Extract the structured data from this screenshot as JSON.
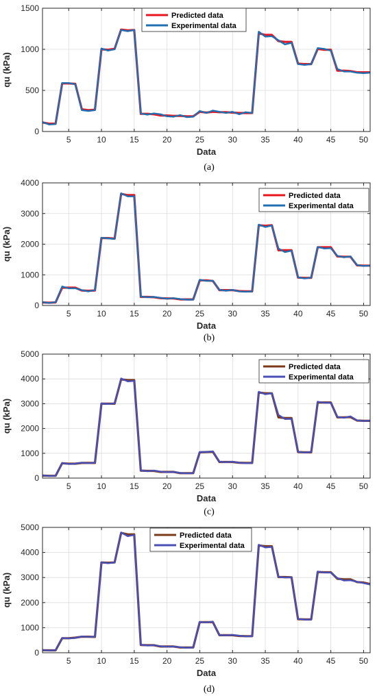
{
  "chart_data": [
    {
      "type": "line",
      "panel_label": "(a)",
      "xlabel": "Data",
      "ylabel": "qu (kPa)",
      "xlim": [
        1,
        51
      ],
      "ylim": [
        0,
        1500
      ],
      "xticks": [
        5,
        10,
        15,
        20,
        25,
        30,
        35,
        40,
        45,
        50
      ],
      "yticks": [
        0,
        500,
        1000,
        1500
      ],
      "grid": true,
      "legend_position": "top-center",
      "x": [
        1,
        2,
        3,
        4,
        5,
        6,
        7,
        8,
        9,
        10,
        11,
        12,
        13,
        14,
        15,
        16,
        17,
        18,
        19,
        20,
        21,
        22,
        23,
        24,
        25,
        26,
        27,
        28,
        29,
        30,
        31,
        32,
        33,
        34,
        35,
        36,
        37,
        38,
        39,
        40,
        41,
        42,
        43,
        44,
        45,
        46,
        47,
        48,
        49,
        50,
        51
      ],
      "series": [
        {
          "name": "Predicted data",
          "color": "#e8141e",
          "values": [
            110,
            95,
            95,
            585,
            585,
            580,
            270,
            260,
            265,
            1000,
            995,
            1005,
            1240,
            1230,
            1235,
            215,
            215,
            210,
            195,
            195,
            190,
            190,
            185,
            185,
            240,
            230,
            240,
            235,
            235,
            230,
            225,
            225,
            225,
            1195,
            1175,
            1175,
            1100,
            1090,
            1090,
            825,
            820,
            820,
            1005,
            995,
            995,
            740,
            740,
            735,
            720,
            720,
            720
          ]
        },
        {
          "name": "Experimental data",
          "color": "#1f6fb2",
          "values": [
            115,
            85,
            90,
            590,
            590,
            575,
            260,
            250,
            260,
            1010,
            985,
            1000,
            1235,
            1220,
            1235,
            220,
            205,
            220,
            210,
            185,
            180,
            200,
            175,
            180,
            250,
            225,
            255,
            240,
            225,
            240,
            210,
            235,
            225,
            1215,
            1155,
            1160,
            1110,
            1060,
            1080,
            820,
            810,
            820,
            1015,
            1005,
            985,
            760,
            730,
            730,
            715,
            710,
            715
          ]
        }
      ]
    },
    {
      "type": "line",
      "panel_label": "(b)",
      "xlabel": "Data",
      "ylabel": "qu (kPa)",
      "xlim": [
        1,
        51
      ],
      "ylim": [
        0,
        4000
      ],
      "xticks": [
        5,
        10,
        15,
        20,
        25,
        30,
        35,
        40,
        45,
        50
      ],
      "yticks": [
        0,
        1000,
        2000,
        3000,
        4000
      ],
      "grid": true,
      "legend_position": "top-right",
      "x": [
        1,
        2,
        3,
        4,
        5,
        6,
        7,
        8,
        9,
        10,
        11,
        12,
        13,
        14,
        15,
        16,
        17,
        18,
        19,
        20,
        21,
        22,
        23,
        24,
        25,
        26,
        27,
        28,
        29,
        30,
        31,
        32,
        33,
        34,
        35,
        36,
        37,
        38,
        39,
        40,
        41,
        42,
        43,
        44,
        45,
        46,
        47,
        48,
        49,
        50,
        51
      ],
      "series": [
        {
          "name": "Predicted data",
          "color": "#e8141e",
          "values": [
            100,
            90,
            100,
            580,
            580,
            580,
            490,
            480,
            490,
            2200,
            2200,
            2180,
            3640,
            3600,
            3600,
            280,
            280,
            270,
            240,
            230,
            230,
            200,
            200,
            200,
            820,
            820,
            800,
            500,
            500,
            500,
            470,
            460,
            460,
            2620,
            2600,
            2620,
            1800,
            1800,
            1800,
            910,
            900,
            900,
            1900,
            1900,
            1900,
            1600,
            1590,
            1590,
            1310,
            1300,
            1300
          ]
        },
        {
          "name": "Experimental data",
          "color": "#1f6fb2",
          "values": [
            110,
            80,
            110,
            620,
            560,
            560,
            500,
            460,
            500,
            2210,
            2190,
            2170,
            3660,
            3560,
            3560,
            290,
            270,
            280,
            250,
            220,
            240,
            210,
            190,
            190,
            840,
            800,
            810,
            510,
            480,
            510,
            460,
            450,
            460,
            2640,
            2560,
            2610,
            1860,
            1740,
            1790,
            920,
            880,
            910,
            1910,
            1860,
            1870,
            1620,
            1570,
            1600,
            1320,
            1290,
            1300
          ]
        }
      ]
    },
    {
      "type": "line",
      "panel_label": "(c)",
      "xlabel": "Data",
      "ylabel": "qu (kPa)",
      "xlim": [
        1,
        51
      ],
      "ylim": [
        0,
        5000
      ],
      "xticks": [
        5,
        10,
        15,
        20,
        25,
        30,
        35,
        40,
        45,
        50
      ],
      "yticks": [
        0,
        1000,
        2000,
        3000,
        4000,
        5000
      ],
      "grid": true,
      "legend_position": "top-right",
      "x": [
        1,
        2,
        3,
        4,
        5,
        6,
        7,
        8,
        9,
        10,
        11,
        12,
        13,
        14,
        15,
        16,
        17,
        18,
        19,
        20,
        21,
        22,
        23,
        24,
        25,
        26,
        27,
        28,
        29,
        30,
        31,
        32,
        33,
        34,
        35,
        36,
        37,
        38,
        39,
        40,
        41,
        42,
        43,
        44,
        45,
        46,
        47,
        48,
        49,
        50,
        51
      ],
      "series": [
        {
          "name": "Predicted data",
          "color": "#7a3a18",
          "values": [
            100,
            90,
            90,
            600,
            580,
            580,
            610,
            610,
            610,
            3000,
            3000,
            3000,
            3980,
            3950,
            3950,
            300,
            290,
            290,
            250,
            250,
            250,
            200,
            200,
            200,
            1040,
            1050,
            1060,
            650,
            650,
            650,
            620,
            610,
            610,
            3450,
            3420,
            3420,
            2450,
            2420,
            2420,
            1050,
            1040,
            1040,
            3050,
            3050,
            3050,
            2450,
            2450,
            2460,
            2320,
            2310,
            2310
          ]
        },
        {
          "name": "Experimental data",
          "color": "#4a4fb8",
          "values": [
            110,
            85,
            90,
            610,
            570,
            580,
            620,
            600,
            620,
            3010,
            2990,
            3010,
            4020,
            3900,
            3920,
            310,
            280,
            300,
            260,
            240,
            250,
            210,
            190,
            200,
            1050,
            1050,
            1080,
            660,
            640,
            660,
            620,
            600,
            610,
            3480,
            3380,
            3420,
            2550,
            2380,
            2390,
            1060,
            1030,
            1050,
            3080,
            3040,
            3040,
            2470,
            2430,
            2490,
            2330,
            2300,
            2320
          ]
        }
      ]
    },
    {
      "type": "line",
      "panel_label": "(d)",
      "xlabel": "Data",
      "ylabel": "qu (kPa)",
      "xlim": [
        1,
        51
      ],
      "ylim": [
        0,
        5000
      ],
      "xticks": [
        5,
        10,
        15,
        20,
        25,
        30,
        35,
        40,
        45,
        50
      ],
      "yticks": [
        0,
        1000,
        2000,
        3000,
        4000,
        5000
      ],
      "grid": true,
      "legend_position": "top-left",
      "x": [
        1,
        2,
        3,
        4,
        5,
        6,
        7,
        8,
        9,
        10,
        11,
        12,
        13,
        14,
        15,
        16,
        17,
        18,
        19,
        20,
        21,
        22,
        23,
        24,
        25,
        26,
        27,
        28,
        29,
        30,
        31,
        32,
        33,
        34,
        35,
        36,
        37,
        38,
        39,
        40,
        41,
        42,
        43,
        44,
        45,
        46,
        47,
        48,
        49,
        50,
        51
      ],
      "series": [
        {
          "name": "Predicted data",
          "color": "#7a3a18",
          "values": [
            100,
            95,
            95,
            580,
            580,
            600,
            640,
            640,
            630,
            3600,
            3590,
            3600,
            4780,
            4720,
            4720,
            310,
            300,
            300,
            250,
            250,
            250,
            210,
            210,
            210,
            1220,
            1220,
            1220,
            700,
            700,
            700,
            670,
            660,
            660,
            4280,
            4250,
            4250,
            3020,
            3020,
            3010,
            1340,
            1330,
            1330,
            3220,
            3210,
            3210,
            2950,
            2930,
            2930,
            2820,
            2800,
            2740
          ]
        },
        {
          "name": "Experimental data",
          "color": "#4a4fb8",
          "values": [
            110,
            90,
            100,
            590,
            570,
            590,
            650,
            630,
            640,
            3610,
            3570,
            3600,
            4800,
            4650,
            4700,
            320,
            290,
            300,
            260,
            240,
            250,
            220,
            200,
            210,
            1230,
            1210,
            1240,
            710,
            690,
            710,
            680,
            650,
            660,
            4310,
            4200,
            4220,
            3030,
            3000,
            3010,
            1350,
            1320,
            1320,
            3240,
            3200,
            3200,
            2980,
            2880,
            2890,
            2830,
            2780,
            2720
          ]
        }
      ]
    }
  ]
}
